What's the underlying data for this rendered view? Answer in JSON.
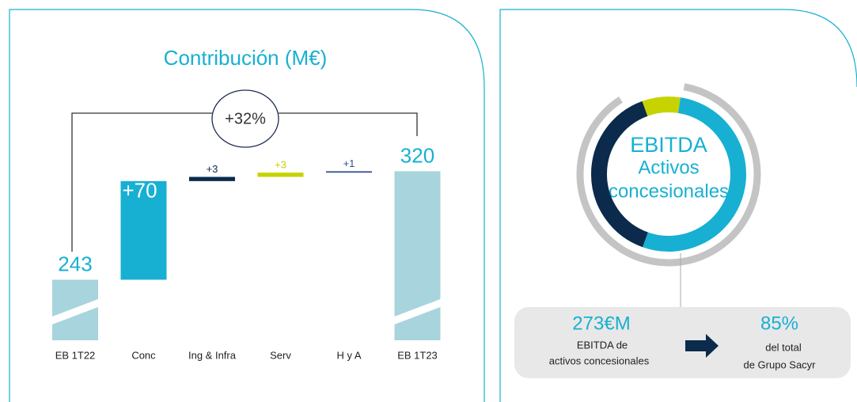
{
  "chart_data": [
    {
      "type": "waterfall",
      "title": "Contribución (M€)",
      "categories": [
        "EB 1T22",
        "Conc",
        "Ing & Infra",
        "Serv",
        "H y A",
        "EB 1T23"
      ],
      "values": [
        243,
        70,
        3,
        3,
        1,
        320
      ],
      "value_labels": [
        "243",
        "+70",
        "+3",
        "+3",
        "+1",
        "320"
      ],
      "measure": [
        "absolute",
        "relative",
        "relative",
        "relative",
        "relative",
        "total"
      ],
      "colors": [
        "#a8d4dd",
        "#17b0d2",
        "#0b2a4c",
        "#c6d300",
        "#2f4f90",
        "#a8d4dd"
      ],
      "ylim": [
        200,
        330
      ],
      "annotation": "+32%"
    },
    {
      "type": "pie",
      "values": [
        8,
        53,
        39
      ],
      "colors": [
        "#c6d300",
        "#17b0d2",
        "#0b2a4c"
      ]
    }
  ],
  "panel": {
    "title_lines": [
      "EBITDA",
      "Activos",
      "concesionales"
    ],
    "left_value": "273€M",
    "left_text": [
      "EBITDA de",
      "activos concesionales"
    ],
    "right_value": "85%",
    "right_text": [
      "del total",
      "de Grupo Sacyr"
    ]
  }
}
